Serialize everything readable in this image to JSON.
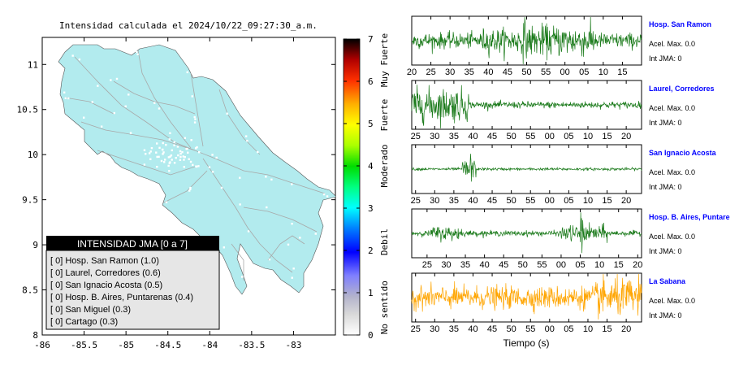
{
  "header": {
    "title": "Intensidad calculada el 2024/10/22_09:27:30_a.m."
  },
  "map": {
    "x_ticks": [
      "-86",
      "-85.5",
      "-85",
      "-84.5",
      "-84",
      "-83.5",
      "-83"
    ],
    "y_ticks": [
      "11",
      "10.5",
      "10",
      "9.5",
      "9",
      "8.5",
      "8"
    ],
    "xlim": [
      -86,
      -82.5
    ],
    "ylim": [
      8,
      11.3
    ],
    "land_color": "#b2ebee",
    "road_color": "#a8a8a8"
  },
  "colorbar": {
    "ticks": [
      "0",
      "1",
      "2",
      "3",
      "4",
      "5",
      "6",
      "7"
    ],
    "labels": [
      "No sentido",
      "Debil",
      "Moderado",
      "Fuerte",
      "Muy Fuerte"
    ]
  },
  "legend": {
    "title": "INTENSIDAD JMA [0 a 7]",
    "items": [
      "[ 0]  Hosp. San Ramon (1.0)",
      "[ 0]  Laurel, Corredores (0.6)",
      "[ 0]  San Ignacio Acosta (0.5)",
      "[ 0]  Hosp. B. Aires, Puntarenas (0.4)",
      "[ 0]  San Miguel (0.3)",
      "[ 0]  Cartago (0.3)"
    ]
  },
  "chart_data": {
    "type": "line",
    "xlabel": "Tiempo (s)",
    "series": [
      {
        "name": "Hosp. San Ramon",
        "accel": "Acel. Max. 0.0",
        "int": "Int JMA: 0",
        "color": "#1a7a1a",
        "xticks": [
          "20",
          "25",
          "30",
          "35",
          "40",
          "45",
          "50",
          "55",
          "00",
          "05",
          "10",
          "15"
        ],
        "start_sec": 20
      },
      {
        "name": "Laurel, Corredores",
        "accel": "Acel. Max. 0.0",
        "int": "Int JMA: 0",
        "color": "#1a7a1a",
        "xticks": [
          "25",
          "30",
          "35",
          "40",
          "45",
          "50",
          "55",
          "00",
          "05",
          "10",
          "15",
          "20"
        ],
        "start_sec": 24
      },
      {
        "name": "San Ignacio Acosta",
        "accel": "Acel. Max. 0.0",
        "int": "Int JMA: 0",
        "color": "#1a7a1a",
        "xticks": [
          "25",
          "30",
          "35",
          "40",
          "45",
          "50",
          "55",
          "00",
          "05",
          "10",
          "15",
          "20"
        ],
        "start_sec": 24
      },
      {
        "name": "Hosp. B. Aires, Puntare",
        "accel": "Acel. Max. 0.0",
        "int": "Int JMA: 0",
        "color": "#1a7a1a",
        "xticks": [
          "25",
          "30",
          "35",
          "40",
          "45",
          "50",
          "55",
          "00",
          "05",
          "10",
          "15",
          "20"
        ],
        "start_sec": 21
      },
      {
        "name": "La Sabana",
        "accel": "Acel. Max. 0.0",
        "int": "Int JMA: 0",
        "color": "#ffa500",
        "xticks": [
          "25",
          "30",
          "35",
          "40",
          "45",
          "50",
          "55",
          "00",
          "05",
          "10",
          "15",
          "20"
        ],
        "start_sec": 24
      }
    ]
  }
}
